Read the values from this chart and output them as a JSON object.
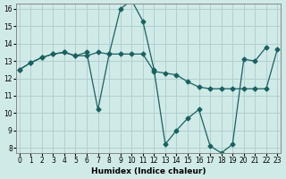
{
  "xlabel": "Humidex (Indice chaleur)",
  "ylabel": "",
  "background_color": "#d0eae8",
  "grid_color": "#b0d0d0",
  "line_color": "#1a6060",
  "xlim": [
    0,
    23
  ],
  "ylim": [
    8,
    16
  ],
  "yticks": [
    8,
    9,
    10,
    11,
    12,
    13,
    14,
    15,
    16
  ],
  "xticks": [
    0,
    1,
    2,
    3,
    4,
    5,
    6,
    7,
    8,
    9,
    10,
    11,
    12,
    13,
    14,
    15,
    16,
    17,
    18,
    19,
    20,
    21,
    22,
    23
  ],
  "series": [
    {
      "x": [
        0,
        1,
        2,
        3,
        4,
        5,
        6,
        7,
        8,
        9,
        10,
        11,
        12,
        13,
        14,
        15,
        16,
        17,
        18,
        19,
        20,
        21,
        22,
        23
      ],
      "y": [
        12.5,
        12.9,
        13.2,
        13.4,
        13.5,
        13.3,
        13.3,
        13.5,
        13.4,
        13.4,
        13.4,
        13.4,
        12.4,
        12.3,
        12.2,
        11.8,
        11.5,
        11.4,
        11.4,
        11.4,
        11.4,
        11.4,
        11.4,
        13.7
      ]
    },
    {
      "x": [
        0,
        1,
        2,
        3,
        4,
        5,
        6,
        7,
        8,
        9,
        10,
        11,
        12,
        13,
        14,
        15,
        16,
        17,
        18,
        19,
        20,
        21,
        22,
        23
      ],
      "y": [
        12.5,
        12.9,
        13.2,
        13.4,
        13.5,
        13.3,
        13.5,
        10.2,
        13.4,
        16.0,
        16.5,
        15.3,
        12.5,
        8.2,
        9.0,
        9.7,
        10.2,
        8.1,
        7.7,
        8.2,
        13.1,
        13.0,
        13.8,
        null
      ]
    }
  ]
}
